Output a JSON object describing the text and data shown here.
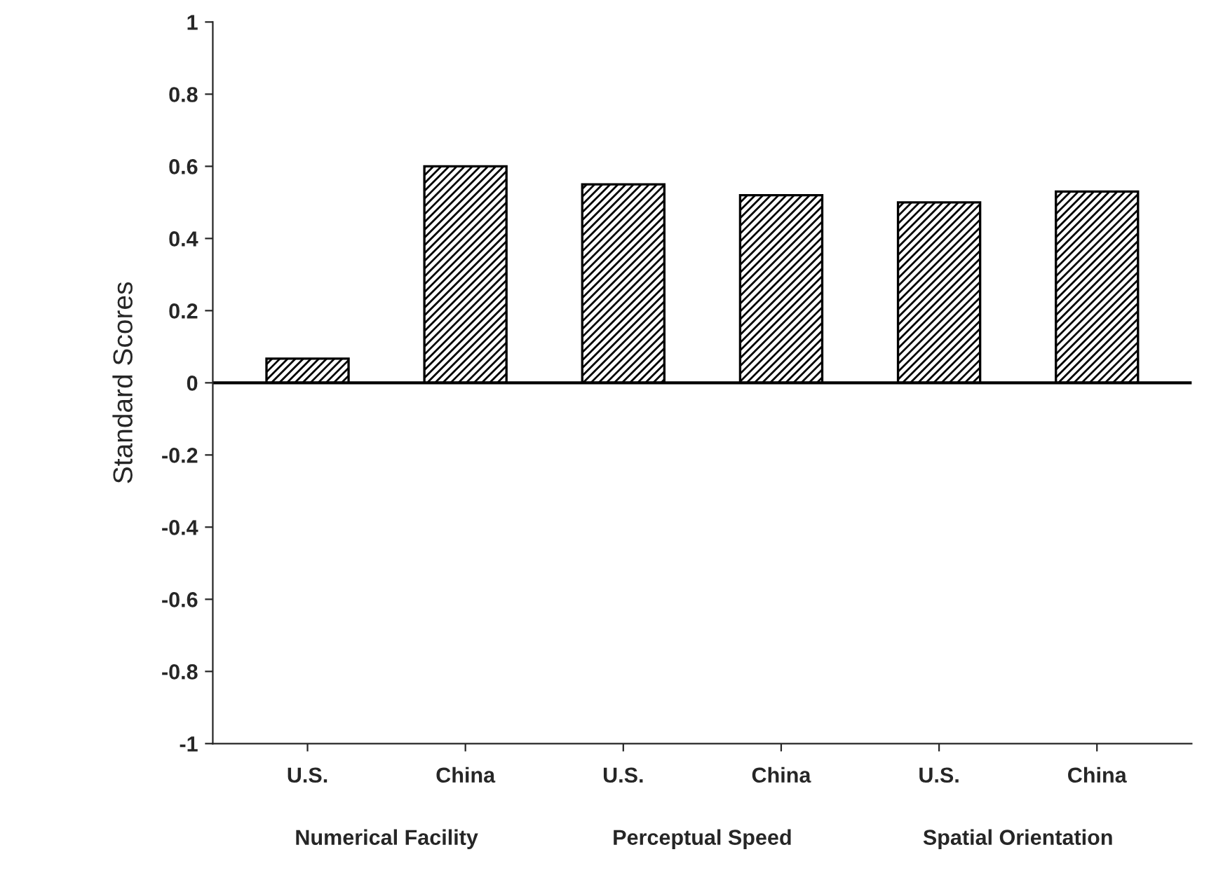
{
  "chart_data": {
    "type": "bar",
    "ylabel": "Standard Scores",
    "categories": [
      "U.S.",
      "China",
      "U.S.",
      "China",
      "U.S.",
      "China"
    ],
    "values": [
      0.067,
      0.6,
      0.55,
      0.52,
      0.5,
      0.53
    ],
    "color": "#000000",
    "ylim": [
      -1,
      1
    ],
    "yticks": [
      -1,
      -0.8,
      -0.6,
      -0.4,
      -0.2,
      0,
      0.2,
      0.4,
      0.6,
      0.8,
      1
    ],
    "ref_lines": [
      {
        "axis": "y",
        "value": 0,
        "color": "#000000"
      }
    ],
    "annotations": [
      "Numerical Facility",
      "Perceptual Speed",
      "Spatial Orientation"
    ],
    "grid": false,
    "legend": false
  }
}
